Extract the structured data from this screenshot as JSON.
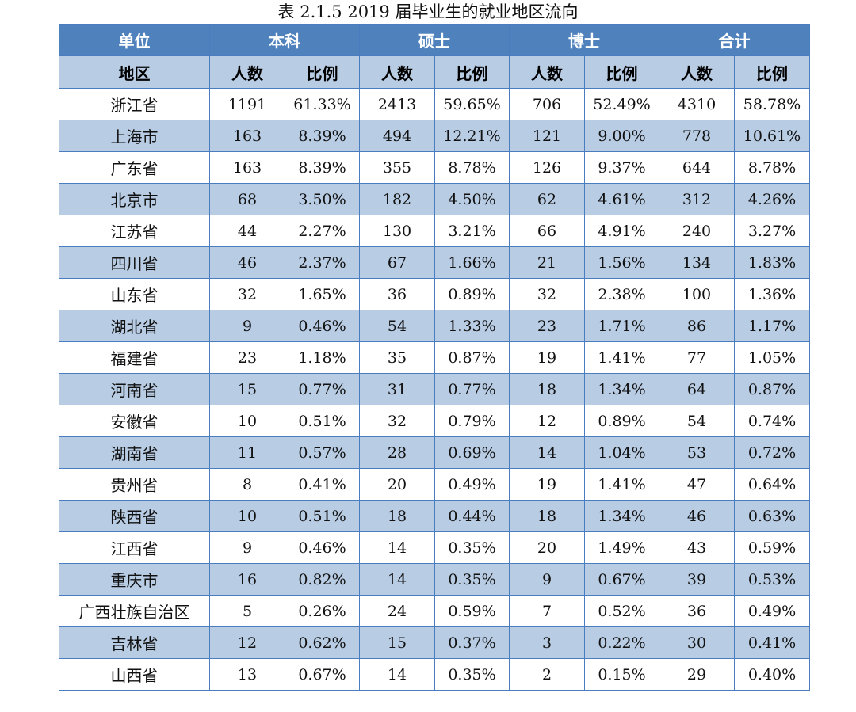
{
  "caption": "表 2.1.5    2019 届毕业生的就业地区流向",
  "header_groups": [
    "单位",
    "本科",
    "硕士",
    "博士",
    "合计"
  ],
  "sub_header": [
    "地区",
    "人数",
    "比例",
    "人数",
    "比例",
    "人数",
    "比例",
    "人数",
    "比例"
  ],
  "rows": [
    [
      "浙江省",
      "1191",
      "61.33%",
      "2413",
      "59.65%",
      "706",
      "52.49%",
      "4310",
      "58.78%"
    ],
    [
      "上海市",
      "163",
      "8.39%",
      "494",
      "12.21%",
      "121",
      "9.00%",
      "778",
      "10.61%"
    ],
    [
      "广东省",
      "163",
      "8.39%",
      "355",
      "8.78%",
      "126",
      "9.37%",
      "644",
      "8.78%"
    ],
    [
      "北京市",
      "68",
      "3.50%",
      "182",
      "4.50%",
      "62",
      "4.61%",
      "312",
      "4.26%"
    ],
    [
      "江苏省",
      "44",
      "2.27%",
      "130",
      "3.21%",
      "66",
      "4.91%",
      "240",
      "3.27%"
    ],
    [
      "四川省",
      "46",
      "2.37%",
      "67",
      "1.66%",
      "21",
      "1.56%",
      "134",
      "1.83%"
    ],
    [
      "山东省",
      "32",
      "1.65%",
      "36",
      "0.89%",
      "32",
      "2.38%",
      "100",
      "1.36%"
    ],
    [
      "湖北省",
      "9",
      "0.46%",
      "54",
      "1.33%",
      "23",
      "1.71%",
      "86",
      "1.17%"
    ],
    [
      "福建省",
      "23",
      "1.18%",
      "35",
      "0.87%",
      "19",
      "1.41%",
      "77",
      "1.05%"
    ],
    [
      "河南省",
      "15",
      "0.77%",
      "31",
      "0.77%",
      "18",
      "1.34%",
      "64",
      "0.87%"
    ],
    [
      "安徽省",
      "10",
      "0.51%",
      "32",
      "0.79%",
      "12",
      "0.89%",
      "54",
      "0.74%"
    ],
    [
      "湖南省",
      "11",
      "0.57%",
      "28",
      "0.69%",
      "14",
      "1.04%",
      "53",
      "0.72%"
    ],
    [
      "贵州省",
      "8",
      "0.41%",
      "20",
      "0.49%",
      "19",
      "1.41%",
      "47",
      "0.64%"
    ],
    [
      "陕西省",
      "10",
      "0.51%",
      "18",
      "0.44%",
      "18",
      "1.34%",
      "46",
      "0.63%"
    ],
    [
      "江西省",
      "9",
      "0.46%",
      "14",
      "0.35%",
      "20",
      "1.49%",
      "43",
      "0.59%"
    ],
    [
      "重庆市",
      "16",
      "0.82%",
      "14",
      "0.35%",
      "9",
      "0.67%",
      "39",
      "0.53%"
    ],
    [
      "广西壮族自治区",
      "5",
      "0.26%",
      "24",
      "0.59%",
      "7",
      "0.52%",
      "36",
      "0.49%"
    ],
    [
      "吉林省",
      "12",
      "0.62%",
      "15",
      "0.37%",
      "3",
      "0.22%",
      "30",
      "0.41%"
    ],
    [
      "山西省",
      "13",
      "0.67%",
      "14",
      "0.35%",
      "2",
      "0.15%",
      "29",
      "0.40%"
    ]
  ],
  "colors": {
    "header_blue": "#4f81bd",
    "band_blue": "#b8cce4",
    "border": "#4a7dbf"
  }
}
